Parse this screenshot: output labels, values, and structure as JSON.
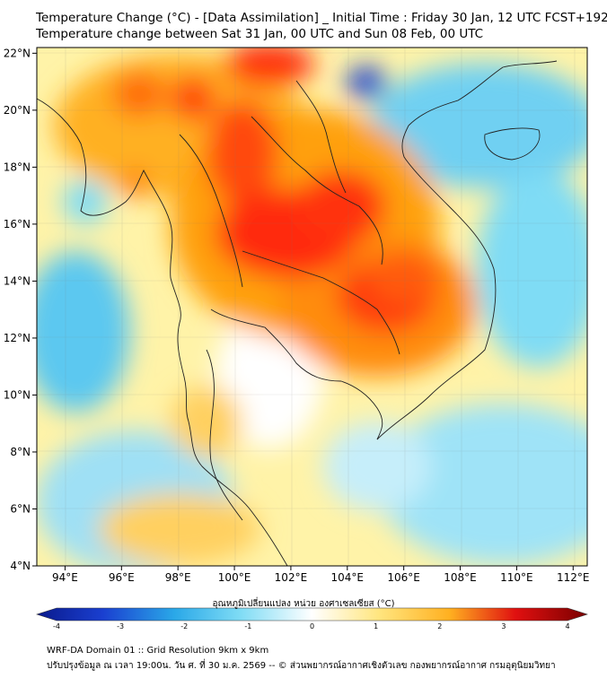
{
  "title_line1": "Temperature Change (°C) - [Data Assimilation] _ Initial Time : Friday 30 Jan, 12 UTC FCST+192",
  "title_line2": "Temperature change between Sat 31 Jan, 00 UTC and Sun 08 Feb, 00 UTC",
  "map": {
    "lon_ticks": [
      "94°E",
      "96°E",
      "98°E",
      "100°E",
      "102°E",
      "104°E",
      "106°E",
      "108°E",
      "110°E",
      "112°E"
    ],
    "lat_ticks": [
      "22°N",
      "20°N",
      "18°N",
      "16°N",
      "14°N",
      "12°N",
      "10°N",
      "8°N",
      "6°N",
      "4°N"
    ],
    "lon_range": [
      93,
      112.5
    ],
    "lat_range": [
      4,
      22.2
    ]
  },
  "colorbar": {
    "label": "อุณหภูมิเปลี่ยนแปลง หน่วย องศาเซลเซียส (°C)",
    "ticks": [
      "-4",
      "-3",
      "-2",
      "-1",
      "0",
      "1",
      "2",
      "3",
      "4"
    ],
    "range": [
      -4,
      4
    ]
  },
  "footer_line1": "WRF-DA Domain 01 :: Grid Resolution 9km x 9km",
  "footer_line2": "ปรับปรุงข้อมูล ณ เวลา 19:00น. วัน ศ. ที่ 30 ม.ค. 2569 -- © ส่วนพยากรณ์อากาศเชิงตัวเลข กองพยากรณ์อากาศ กรมอุตุนิยมวิทยา",
  "colors": {
    "neg_strong": "#0a1a8c",
    "neg_mid": "#2aa8e8",
    "neg_light": "#7fdcf5",
    "neutral": "#ffffff",
    "pos_light": "#ffe680",
    "pos_mid": "#ff9a1a",
    "pos_strong": "#e01010",
    "pos_max": "#7a0000"
  }
}
